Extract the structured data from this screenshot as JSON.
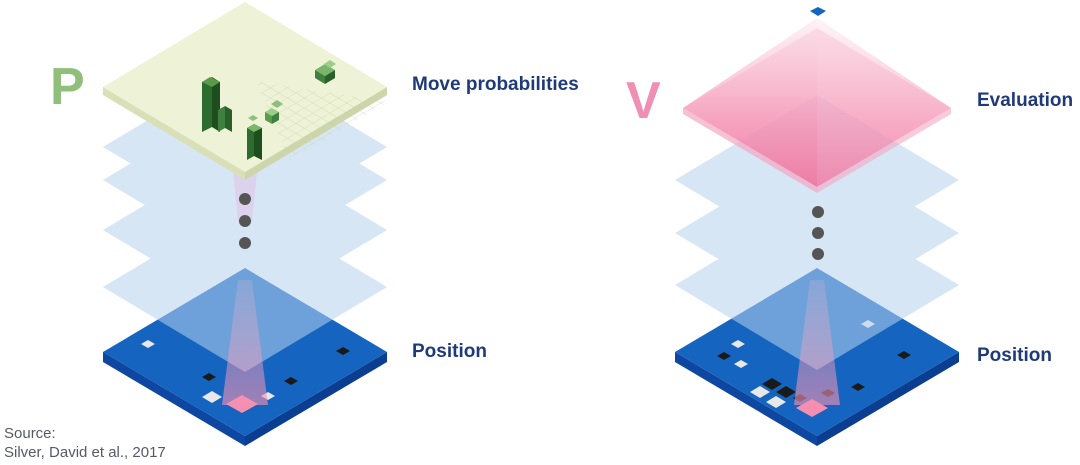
{
  "policy_panel": {
    "letter": "P",
    "letter_color": "#8fbf7a",
    "top_label": "Move probabilities",
    "bottom_label": "Position",
    "output_plane_color": "#eef2d6",
    "bar_color": "#2f6b2f",
    "board_color": "#1565c0"
  },
  "value_panel": {
    "letter": "V",
    "letter_color": "#f08fb4",
    "top_label": "Evaluation",
    "bottom_label": "Position",
    "pyramid_color": "#f06292",
    "board_color": "#1565c0"
  },
  "label_color": "#1f3a7a",
  "hidden_layer_color": "#b7d3ee",
  "source": {
    "line1": "Source:",
    "line2": "Silver, David et al., 2017"
  }
}
